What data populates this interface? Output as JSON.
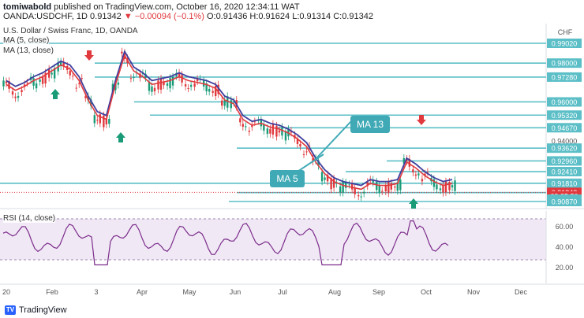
{
  "header": {
    "author": "tomiwabold",
    "published_text": "published on TradingView.com, October 16, 2020 12:34:11 WAT",
    "symbol_line": "OANDA:USDCHF, 1D",
    "last": "0.91342",
    "change": "−0.00094 (−0.1%)",
    "ohlc": "O:0.91436 H:0.91624 L:0.91314 C:0.91342"
  },
  "chart": {
    "title": "U.S. Dollar / Swiss Franc, 1D, OANDA",
    "currency": "CHF",
    "ma5_legend": "MA (5, close)",
    "ma13_legend": "MA (13, close)",
    "ma13_label": "MA 13",
    "ma5_label": "MA 5",
    "rsi_legend": "RSI (14, close)",
    "price_labels": [
      "0.99020",
      "0.98000",
      "0.97280",
      "0.96000",
      "0.95320",
      "0.94670",
      "0.94000",
      "0.93620",
      "0.92960",
      "0.92410",
      "0.91810",
      "0.91342",
      "09:25:50",
      "0.91330",
      "0.90870"
    ],
    "rsi_labels": [
      "60.00",
      "40.00",
      "20.00"
    ],
    "x_labels": [
      "20",
      "Feb",
      "3",
      "Apr",
      "May",
      "Jun",
      "Jul",
      "Aug",
      "Sep",
      "Oct",
      "Nov",
      "Dec"
    ]
  },
  "footer": {
    "brand": "TradingView"
  },
  "colors": {
    "level": "#5cbfc7",
    "ma5": "#e0393e",
    "ma13": "#3f3f9e",
    "rsi": "#7b2d8b",
    "arrow_up": "#1a9b78",
    "arrow_down": "#e0393e",
    "callout": "#3fa9b5"
  }
}
